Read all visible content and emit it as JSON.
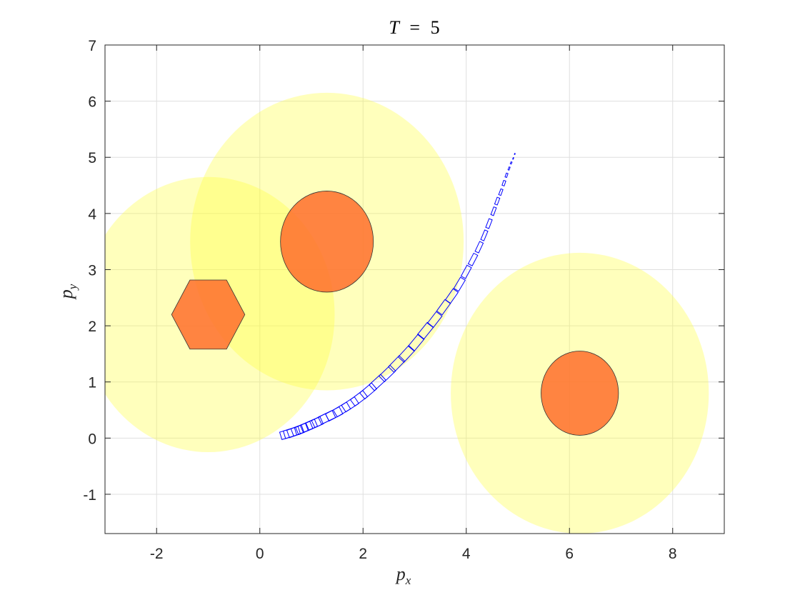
{
  "chart_data": {
    "type": "scatter",
    "title": {
      "variable": "T",
      "operator": "=",
      "value": "5"
    },
    "xlabel": {
      "base": "p",
      "sub": "x"
    },
    "ylabel": {
      "base": "p",
      "sub": "y"
    },
    "xlim": [
      -3,
      9
    ],
    "ylim": [
      -1.7,
      7
    ],
    "xticks": [
      -2,
      0,
      2,
      4,
      6,
      8
    ],
    "yticks": [
      -1,
      0,
      1,
      2,
      3,
      4,
      5,
      6,
      7
    ],
    "xtick_labels": [
      "-2",
      "0",
      "2",
      "4",
      "6",
      "8"
    ],
    "ytick_labels": [
      "-1",
      "0",
      "1",
      "2",
      "3",
      "4",
      "5",
      "6",
      "7"
    ],
    "grid": true,
    "safety_regions": [
      {
        "cx": -1.0,
        "cy": 2.2,
        "rx": 2.45,
        "ry": 2.45
      },
      {
        "cx": 1.3,
        "cy": 3.5,
        "rx": 2.65,
        "ry": 2.65
      },
      {
        "cx": 6.2,
        "cy": 0.8,
        "rx": 2.5,
        "ry": 2.5
      }
    ],
    "obstacles": [
      {
        "shape": "hexagon",
        "cx": -1.0,
        "cy": 2.2,
        "r": 0.71
      },
      {
        "shape": "ellipse",
        "cx": 1.3,
        "cy": 3.5,
        "rx": 0.9,
        "ry": 0.9
      },
      {
        "shape": "ellipse",
        "cx": 6.2,
        "cy": 0.8,
        "rx": 0.75,
        "ry": 0.75
      }
    ],
    "trajectory": {
      "x": [
        0.55,
        0.62,
        0.69,
        0.77,
        0.86,
        0.95,
        1.06,
        1.17,
        1.3,
        1.44,
        1.59,
        1.75,
        1.92,
        2.1,
        2.28,
        2.47,
        2.65,
        2.84,
        3.03,
        3.21,
        3.39,
        3.56,
        3.72,
        3.87,
        4.0,
        4.13,
        4.25,
        4.35,
        4.44,
        4.53,
        4.6,
        4.67,
        4.73,
        4.78,
        4.83,
        4.87,
        4.91,
        4.94
      ],
      "y": [
        0.08,
        0.1,
        0.12,
        0.15,
        0.18,
        0.22,
        0.26,
        0.31,
        0.37,
        0.43,
        0.51,
        0.6,
        0.71,
        0.84,
        0.99,
        1.15,
        1.32,
        1.5,
        1.7,
        1.91,
        2.11,
        2.33,
        2.53,
        2.74,
        2.96,
        3.18,
        3.4,
        3.61,
        3.82,
        4.04,
        4.22,
        4.38,
        4.54,
        4.68,
        4.8,
        4.9,
        4.98,
        5.06
      ],
      "width": [
        0.3,
        0.3,
        0.3,
        0.3,
        0.3,
        0.3,
        0.3,
        0.3,
        0.3,
        0.3,
        0.3,
        0.3,
        0.3,
        0.3,
        0.3,
        0.3,
        0.3,
        0.3,
        0.3,
        0.3,
        0.28,
        0.27,
        0.26,
        0.25,
        0.24,
        0.23,
        0.21,
        0.2,
        0.18,
        0.16,
        0.14,
        0.12,
        0.1,
        0.08,
        0.06,
        0.04,
        0.03,
        0.02
      ],
      "height": [
        0.14,
        0.14,
        0.14,
        0.14,
        0.14,
        0.14,
        0.14,
        0.14,
        0.14,
        0.14,
        0.14,
        0.14,
        0.14,
        0.14,
        0.14,
        0.14,
        0.14,
        0.14,
        0.14,
        0.14,
        0.13,
        0.12,
        0.11,
        0.1,
        0.09,
        0.08,
        0.07,
        0.06,
        0.06,
        0.05,
        0.05,
        0.04,
        0.04,
        0.03,
        0.02,
        0.02,
        0.01,
        0.01
      ]
    },
    "colors": {
      "safety_region": "#ffff33",
      "obstacle": "#ff6f2b",
      "trajectory": "#0000ff",
      "grid": "#dfdfdf",
      "axis": "#262626"
    }
  }
}
